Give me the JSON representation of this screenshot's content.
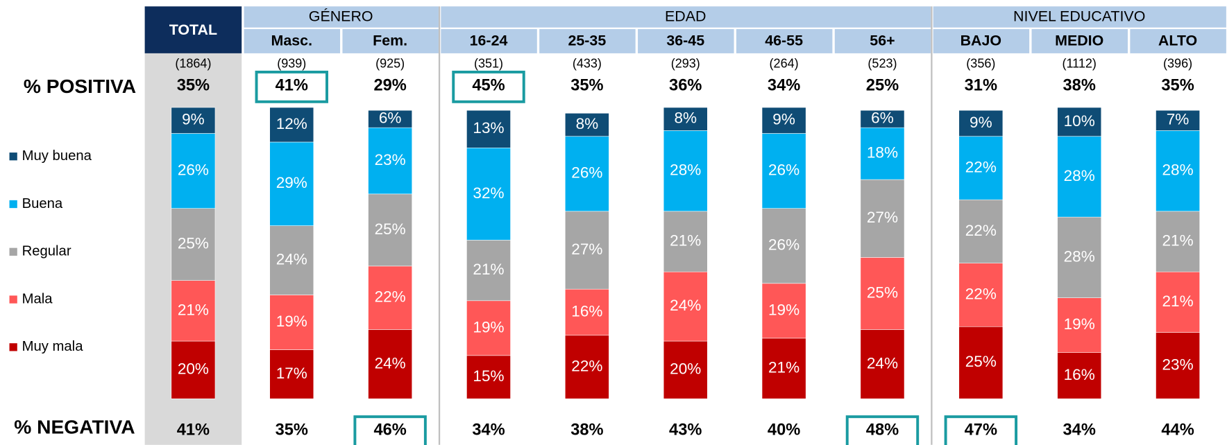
{
  "chart_data": {
    "type": "stacked_bar",
    "categories": [
      "TOTAL",
      "Masc.",
      "Fem.",
      "16-24",
      "25-35",
      "36-45",
      "46-55",
      "56+",
      "BAJO",
      "MEDIO",
      "ALTO"
    ],
    "groups": [
      {
        "name": "GÉNERO",
        "span": 2
      },
      {
        "name": "EDAD",
        "span": 5
      },
      {
        "name": "NIVEL EDUCATIVO",
        "span": 3
      }
    ],
    "sample_sizes": [
      "(1864)",
      "(939)",
      "(925)",
      "(351)",
      "(433)",
      "(293)",
      "(264)",
      "(523)",
      "(356)",
      "(1112)",
      "(396)"
    ],
    "positive": {
      "label": "% POSITIVA",
      "values": [
        35,
        41,
        29,
        45,
        35,
        36,
        34,
        25,
        31,
        38,
        35
      ],
      "value_labels": [
        "35%",
        "41%",
        "29%",
        "45%",
        "35%",
        "36%",
        "34%",
        "25%",
        "31%",
        "38%",
        "35%"
      ],
      "highlight": [
        false,
        true,
        false,
        true,
        false,
        false,
        false,
        false,
        false,
        false,
        false
      ]
    },
    "negative": {
      "label": "% NEGATIVA",
      "values": [
        41,
        35,
        46,
        34,
        38,
        43,
        40,
        48,
        47,
        34,
        44
      ],
      "value_labels": [
        "41%",
        "35%",
        "46%",
        "34%",
        "38%",
        "43%",
        "40%",
        "48%",
        "47%",
        "34%",
        "44%"
      ],
      "highlight": [
        false,
        false,
        true,
        false,
        false,
        false,
        false,
        true,
        true,
        false,
        false
      ]
    },
    "series": [
      {
        "name": "Muy buena",
        "color": "#0f4c75",
        "values": [
          9,
          12,
          6,
          13,
          8,
          8,
          9,
          6,
          9,
          10,
          7
        ],
        "value_labels": [
          "9%",
          "12%",
          "6%",
          "13%",
          "8%",
          "8%",
          "9%",
          "6%",
          "9%",
          "10%",
          "7%"
        ]
      },
      {
        "name": "Buena",
        "color": "#00b0f0",
        "values": [
          26,
          29,
          23,
          32,
          26,
          28,
          26,
          18,
          22,
          28,
          28
        ],
        "value_labels": [
          "26%",
          "29%",
          "23%",
          "32%",
          "26%",
          "28%",
          "26%",
          "18%",
          "22%",
          "28%",
          "28%"
        ]
      },
      {
        "name": "Regular",
        "color": "#a6a6a6",
        "values": [
          25,
          24,
          25,
          21,
          27,
          21,
          26,
          27,
          22,
          28,
          21
        ],
        "value_labels": [
          "25%",
          "24%",
          "25%",
          "21%",
          "27%",
          "21%",
          "26%",
          "27%",
          "22%",
          "28%",
          "21%"
        ]
      },
      {
        "name": "Mala",
        "color": "#ff5757",
        "values": [
          21,
          19,
          22,
          19,
          16,
          24,
          19,
          25,
          22,
          19,
          21
        ],
        "value_labels": [
          "21%",
          "19%",
          "22%",
          "19%",
          "16%",
          "24%",
          "19%",
          "25%",
          "22%",
          "19%",
          "21%"
        ]
      },
      {
        "name": "Muy mala",
        "color": "#c00000",
        "values": [
          20,
          17,
          24,
          15,
          22,
          20,
          21,
          24,
          25,
          16,
          23
        ],
        "value_labels": [
          "20%",
          "17%",
          "24%",
          "15%",
          "22%",
          "20%",
          "21%",
          "24%",
          "25%",
          "16%",
          "23%"
        ]
      }
    ],
    "ylim": [
      0,
      100
    ]
  }
}
